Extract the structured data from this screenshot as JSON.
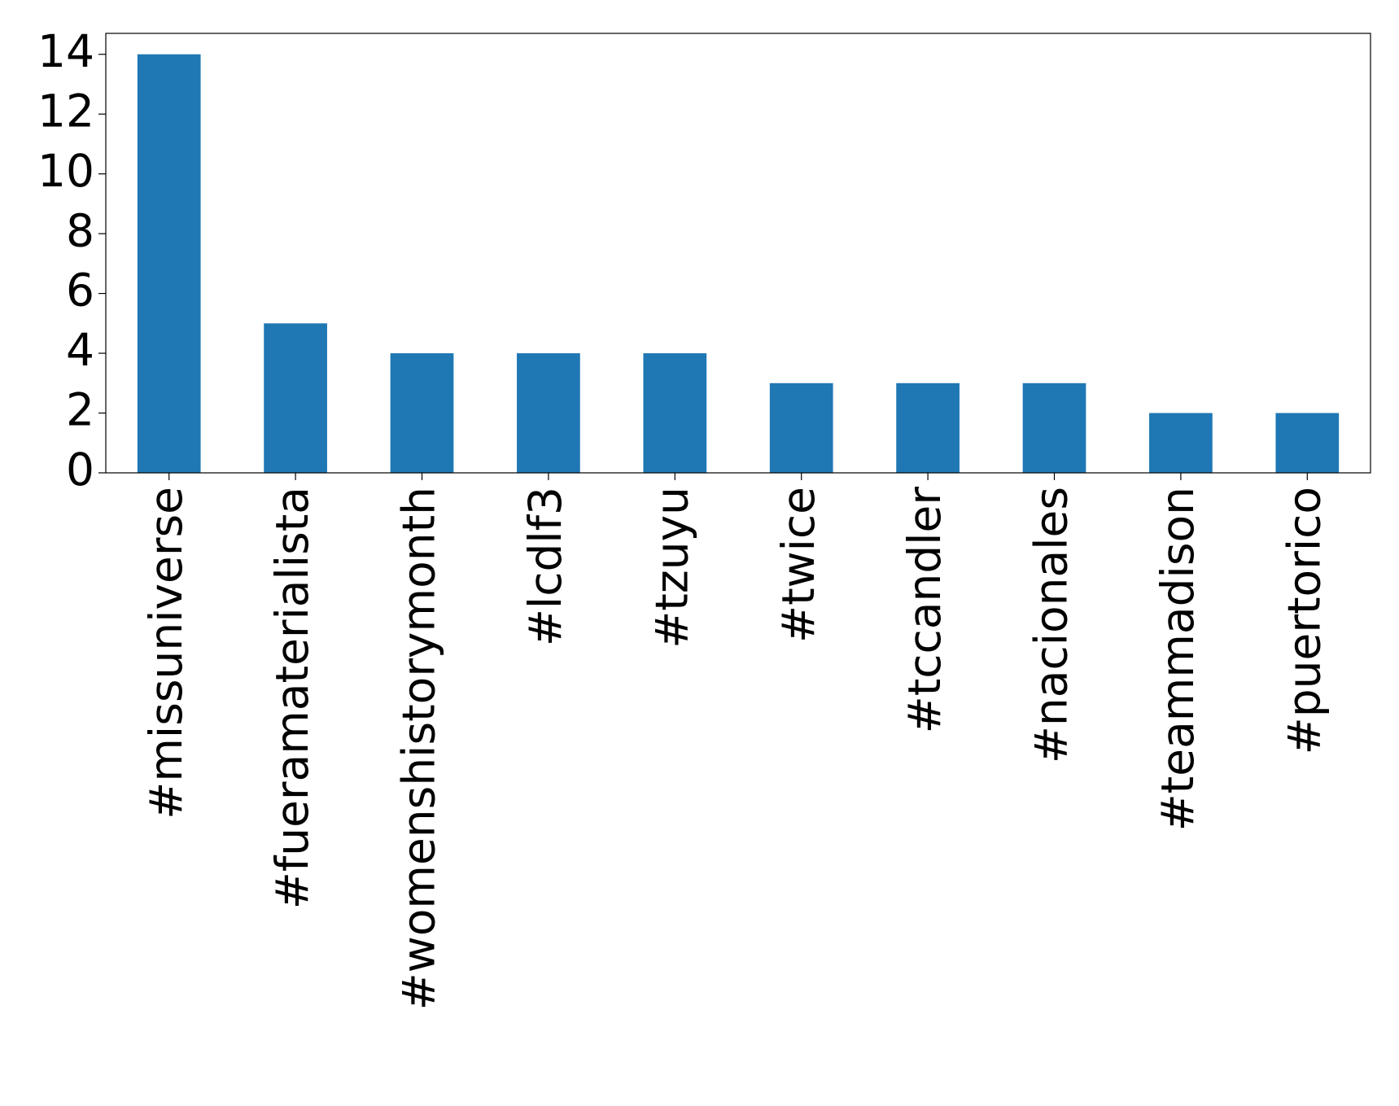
{
  "chart_data": {
    "type": "bar",
    "categories": [
      "#missuniverse",
      "#fueramaterialista",
      "#womenshistorymonth",
      "#lcdlf3",
      "#tzuyu",
      "#twice",
      "#tccandler",
      "#nacionales",
      "#teammadison",
      "#puertorico"
    ],
    "values": [
      14,
      5,
      4,
      4,
      4,
      3,
      3,
      3,
      2,
      2
    ],
    "color": "#1f77b4",
    "ylim": [
      0,
      14.7
    ],
    "yticks": [
      0,
      2,
      4,
      6,
      8,
      10,
      12,
      14
    ],
    "grid": false
  }
}
